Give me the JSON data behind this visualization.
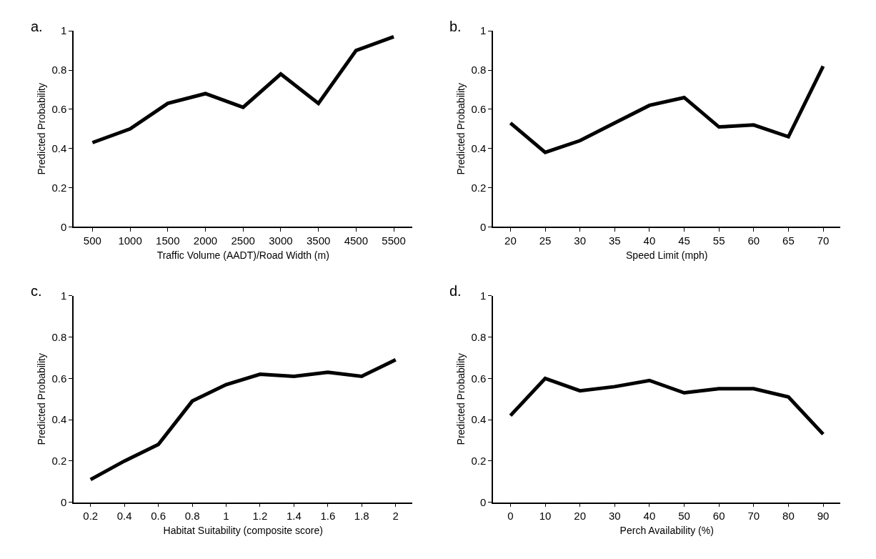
{
  "chart_data": [
    {
      "type": "line",
      "title": "a.",
      "xlabel": "Traffic Volume (AADT)/Road Width (m)",
      "ylabel": "Predicted Probability",
      "categories": [
        "500",
        "1000",
        "1500",
        "2000",
        "2500",
        "3000",
        "3500",
        "4500",
        "5500"
      ],
      "series": [
        {
          "color": "#000000",
          "values": [
            0.43,
            0.5,
            0.63,
            0.68,
            0.61,
            0.78,
            0.63,
            0.9,
            0.97
          ]
        }
      ],
      "ylim": [
        0,
        1
      ],
      "yticks": [
        0,
        0.2,
        0.4,
        0.6,
        0.8,
        1
      ],
      "marker": "none",
      "line_style": "solid"
    },
    {
      "type": "line",
      "title": "b.",
      "xlabel": "Speed Limit (mph)",
      "ylabel": "Predicted Probability",
      "categories": [
        "20",
        "25",
        "30",
        "35",
        "40",
        "45",
        "55",
        "60",
        "65",
        "70"
      ],
      "series": [
        {
          "color": "#000000",
          "values": [
            0.53,
            0.38,
            0.44,
            0.53,
            0.62,
            0.66,
            0.51,
            0.52,
            0.46,
            0.82
          ]
        }
      ],
      "ylim": [
        0,
        1
      ],
      "yticks": [
        0,
        0.2,
        0.4,
        0.6,
        0.8,
        1
      ],
      "marker": "none",
      "line_style": "solid"
    },
    {
      "type": "line",
      "title": "c.",
      "xlabel": "Habitat Suitability (composite score)",
      "ylabel": "Predicted Probability",
      "categories": [
        "0.2",
        "0.4",
        "0.6",
        "0.8",
        "1",
        "1.2",
        "1.4",
        "1.6",
        "1.8",
        "2"
      ],
      "series": [
        {
          "color": "#000000",
          "values": [
            0.11,
            0.2,
            0.28,
            0.49,
            0.57,
            0.62,
            0.61,
            0.63,
            0.61,
            0.69
          ]
        }
      ],
      "ylim": [
        0,
        1
      ],
      "yticks": [
        0,
        0.2,
        0.4,
        0.6,
        0.8,
        1
      ],
      "marker": "none",
      "line_style": "solid"
    },
    {
      "type": "line",
      "title": "d.",
      "xlabel": "Perch Availability (%)",
      "ylabel": "Predicted Probability",
      "categories": [
        "0",
        "10",
        "20",
        "30",
        "40",
        "50",
        "60",
        "70",
        "80",
        "90"
      ],
      "series": [
        {
          "color": "#000000",
          "values": [
            0.42,
            0.6,
            0.54,
            0.56,
            0.59,
            0.53,
            0.55,
            0.55,
            0.51,
            0.33
          ]
        }
      ],
      "ylim": [
        0,
        1
      ],
      "yticks": [
        0,
        0.2,
        0.4,
        0.6,
        0.8,
        1
      ],
      "marker": "none",
      "line_style": "solid"
    }
  ]
}
